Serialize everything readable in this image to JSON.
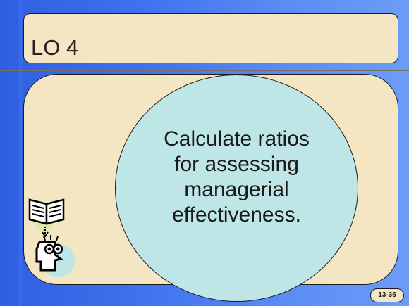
{
  "slide": {
    "title": "LO 4",
    "objective_lines": [
      "Calculate ratios",
      "for assessing",
      "managerial",
      "effectiveness."
    ],
    "page_number": "13-36"
  },
  "icons": {
    "book": "open-book-icon",
    "thinker": "thinking-face-icon"
  },
  "colors": {
    "background_left": "#2f5fe0",
    "background_right": "#6d9cf7",
    "panel_fill": "#f4e5c3",
    "ellipse_fill": "#bfe6e7",
    "text": "#1a1a1a"
  }
}
